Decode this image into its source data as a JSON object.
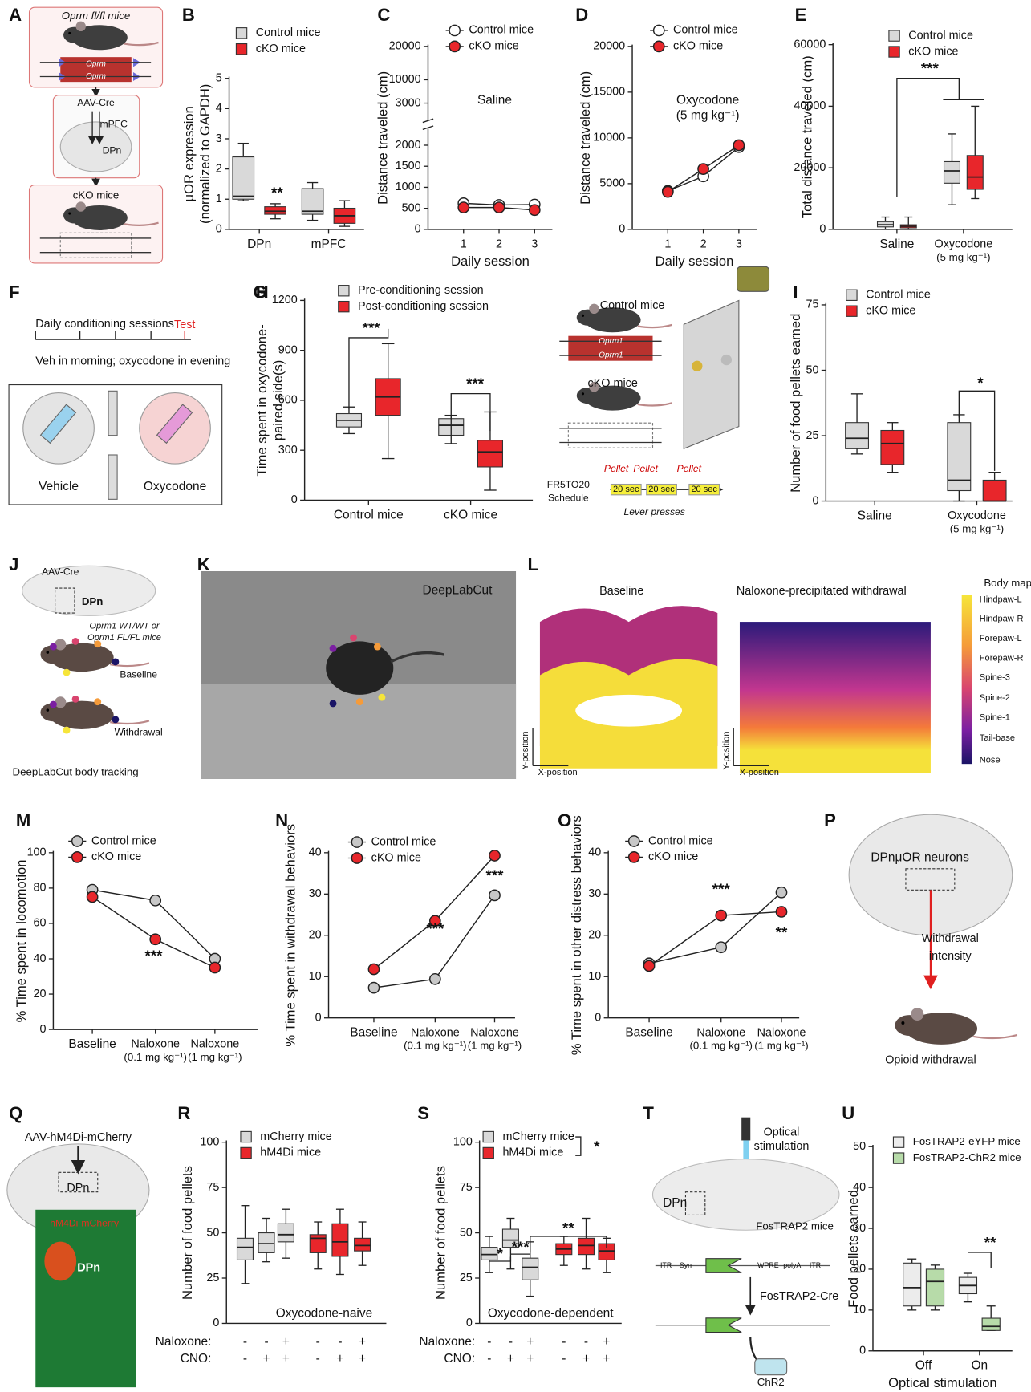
{
  "chart_data": [
    {
      "panel": "B",
      "type": "box",
      "ylabel": [
        "μOR expression",
        "(normalized to GAPDH)"
      ],
      "categories": [
        "DPn",
        "mPFC"
      ],
      "ylim": [
        0,
        5
      ],
      "yticks": [
        0,
        1,
        2,
        3,
        4,
        5
      ],
      "grid": false,
      "series": [
        {
          "name": "Control mice",
          "color": "#d9d9d9",
          "min": [
            0.95,
            0.3
          ],
          "q1": [
            1.0,
            0.5
          ],
          "median": [
            1.1,
            0.6
          ],
          "q3": [
            2.4,
            1.35
          ],
          "max": [
            2.85,
            1.55
          ]
        },
        {
          "name": "cKO mice",
          "color": "#e8262b",
          "min": [
            0.35,
            0.1
          ],
          "q1": [
            0.5,
            0.2
          ],
          "median": [
            0.6,
            0.45
          ],
          "q3": [
            0.75,
            0.7
          ],
          "max": [
            0.85,
            0.95
          ]
        }
      ],
      "annotations": [
        "**"
      ]
    },
    {
      "panel": "C",
      "type": "line",
      "ylabel": [
        "Distance traveled (cm)"
      ],
      "xlabel": "Daily session",
      "x": [
        1,
        2,
        3
      ],
      "xlim": [
        0,
        3.5
      ],
      "xticks": [
        1,
        2,
        3
      ],
      "ylim": [
        0,
        20000
      ],
      "ybreak": [
        2000,
        3000
      ],
      "yticks": [
        0,
        500,
        1000,
        1500,
        2000,
        3000,
        10000,
        20000
      ],
      "grid": false,
      "series": [
        {
          "name": "Control mice",
          "color": "#ffffff",
          "values": [
            620,
            580,
            590
          ]
        },
        {
          "name": "cKO mice",
          "color": "#e8262b",
          "values": [
            520,
            520,
            460
          ]
        }
      ],
      "annotations": [
        "Saline"
      ]
    },
    {
      "panel": "D",
      "type": "line",
      "ylabel": [
        "Distance traveled (cm)"
      ],
      "xlabel": "Daily session",
      "x": [
        1,
        2,
        3
      ],
      "xlim": [
        0,
        3.5
      ],
      "xticks": [
        1,
        2,
        3
      ],
      "ylim": [
        0,
        20000
      ],
      "yticks": [
        0,
        5000,
        10000,
        15000,
        20000
      ],
      "grid": false,
      "series": [
        {
          "name": "Control mice",
          "color": "#ffffff",
          "values": [
            4200,
            5800,
            9000
          ]
        },
        {
          "name": "cKO mice",
          "color": "#e8262b",
          "values": [
            4100,
            6600,
            9200
          ]
        }
      ],
      "annotations": [
        "Oxycodone",
        "(5 mg kg⁻¹)"
      ]
    },
    {
      "panel": "E",
      "type": "box",
      "ylabel": [
        "Total distance traveled (cm)"
      ],
      "categories": [
        "Saline",
        [
          "Oxycodone",
          "(5 mg kg⁻¹)"
        ]
      ],
      "ylim": [
        0,
        60000
      ],
      "yticks": [
        0,
        20000,
        40000,
        60000
      ],
      "grid": false,
      "series": [
        {
          "name": "Control mice",
          "color": "#d9d9d9",
          "min": [
            0,
            8000
          ],
          "q1": [
            800,
            15000
          ],
          "median": [
            1500,
            19000
          ],
          "q3": [
            2500,
            22000
          ],
          "max": [
            4000,
            31000
          ]
        },
        {
          "name": "cKO mice",
          "color": "#e8262b",
          "min": [
            0,
            10000
          ],
          "q1": [
            500,
            13000
          ],
          "median": [
            1000,
            17000
          ],
          "q3": [
            1500,
            24000
          ],
          "max": [
            4000,
            40000
          ]
        }
      ],
      "annotations": [
        "***"
      ]
    },
    {
      "panel": "G",
      "type": "box",
      "ylabel": [
        "Time spent in oxycodone-",
        "paired side(s)"
      ],
      "categories": [
        "Control mice",
        "cKO mice"
      ],
      "ylim": [
        0,
        1200
      ],
      "yticks": [
        0,
        300,
        600,
        900,
        1200
      ],
      "grid": false,
      "series": [
        {
          "name": "Pre-conditioning session",
          "color": "#d9d9d9",
          "min": [
            400,
            340
          ],
          "q1": [
            440,
            390
          ],
          "median": [
            480,
            450
          ],
          "q3": [
            520,
            490
          ],
          "max": [
            560,
            510
          ]
        },
        {
          "name": "Post-conditioning session",
          "color": "#e8262b",
          "min": [
            250,
            60
          ],
          "q1": [
            510,
            200
          ],
          "median": [
            620,
            290
          ],
          "q3": [
            730,
            360
          ],
          "max": [
            940,
            530
          ]
        }
      ],
      "annotations": [
        "***",
        "***"
      ]
    },
    {
      "panel": "I",
      "type": "box",
      "ylabel": [
        "Number of food pellets earned"
      ],
      "categories": [
        "Saline",
        [
          "Oxycodone",
          "(5 mg kg⁻¹)"
        ]
      ],
      "ylim": [
        0,
        75
      ],
      "yticks": [
        0,
        25,
        50,
        75
      ],
      "grid": false,
      "series": [
        {
          "name": "Control mice",
          "color": "#d9d9d9",
          "min": [
            18,
            0
          ],
          "q1": [
            20,
            4
          ],
          "median": [
            24,
            8
          ],
          "q3": [
            30,
            30
          ],
          "max": [
            41,
            33
          ]
        },
        {
          "name": "cKO mice",
          "color": "#e8262b",
          "min": [
            11,
            0
          ],
          "q1": [
            14,
            0
          ],
          "median": [
            22,
            0
          ],
          "q3": [
            27,
            8
          ],
          "max": [
            30,
            11
          ]
        }
      ],
      "annotations": [
        "*"
      ]
    },
    {
      "panel": "M",
      "type": "line",
      "ylabel": [
        "% Time spent in locomotion"
      ],
      "categories": [
        "Baseline",
        [
          "Naloxone",
          "(0.1 mg kg⁻¹)"
        ],
        [
          "Naloxone",
          "(1 mg kg⁻¹)"
        ]
      ],
      "ylim": [
        0,
        100
      ],
      "yticks": [
        0,
        20,
        40,
        60,
        80,
        100
      ],
      "grid": false,
      "series": [
        {
          "name": "Control mice",
          "color": "#c8c8c8",
          "values": [
            79,
            73,
            40
          ]
        },
        {
          "name": "cKO mice",
          "color": "#e8262b",
          "values": [
            75,
            51,
            35
          ]
        }
      ],
      "annotations": [
        "***"
      ]
    },
    {
      "panel": "N",
      "type": "line",
      "ylabel": [
        "% Time spent in withdrawal behaviors"
      ],
      "categories": [
        "Baseline",
        [
          "Naloxone",
          "(0.1 mg kg⁻¹)"
        ],
        [
          "Naloxone",
          "(1 mg kg⁻¹)"
        ]
      ],
      "ylim": [
        0,
        40
      ],
      "yticks": [
        0,
        10,
        20,
        30,
        40
      ],
      "grid": false,
      "series": [
        {
          "name": "Control mice",
          "color": "#c8c8c8",
          "values": [
            7.3,
            9.4,
            29.7
          ]
        },
        {
          "name": "cKO mice",
          "color": "#e8262b",
          "values": [
            11.8,
            23.5,
            39.3
          ]
        }
      ],
      "annotations": [
        "***",
        "***"
      ]
    },
    {
      "panel": "O",
      "type": "line",
      "ylabel": [
        "% Time spent in other distress behaviors"
      ],
      "categories": [
        "Baseline",
        [
          "Naloxone",
          "(0.1 mg kg⁻¹)"
        ],
        [
          "Naloxone",
          "(1 mg kg⁻¹)"
        ]
      ],
      "ylim": [
        0,
        40
      ],
      "yticks": [
        0,
        10,
        20,
        30,
        40
      ],
      "grid": false,
      "series": [
        {
          "name": "Control mice",
          "color": "#c8c8c8",
          "values": [
            13.2,
            17.1,
            30.4
          ]
        },
        {
          "name": "cKO mice",
          "color": "#e8262b",
          "values": [
            12.6,
            24.8,
            25.7
          ]
        }
      ],
      "annotations": [
        "***",
        "**"
      ]
    },
    {
      "panel": "R",
      "type": "box",
      "ylabel": [
        "Number of food pellets"
      ],
      "categories": [
        null,
        null,
        null,
        null,
        null,
        null
      ],
      "ylim": [
        0,
        100
      ],
      "yticks": [
        0,
        25,
        50,
        75,
        100
      ],
      "grid": false,
      "series": [
        {
          "name": "mCherry mice",
          "color": "#d9d9d9",
          "min": [
            22,
            34,
            36,
            null,
            null,
            null
          ],
          "q1": [
            35,
            39,
            45,
            null,
            null,
            null
          ],
          "median": [
            42,
            44,
            49,
            null,
            null,
            null
          ],
          "q3": [
            47,
            50,
            55,
            null,
            null,
            null
          ],
          "max": [
            65,
            58,
            63,
            null,
            null,
            null
          ]
        },
        {
          "name": "hM4Di mice",
          "color": "#e8262b",
          "min": [
            null,
            null,
            null,
            30,
            27,
            32
          ],
          "q1": [
            null,
            null,
            null,
            39,
            37,
            40
          ],
          "median": [
            null,
            null,
            null,
            47,
            45,
            43
          ],
          "q3": [
            null,
            null,
            null,
            49,
            55,
            47
          ],
          "max": [
            null,
            null,
            null,
            56,
            63,
            56
          ]
        }
      ],
      "rows": [
        {
          "name": "Naloxone:",
          "values": [
            "-",
            "-",
            "+",
            "-",
            "-",
            "+"
          ]
        },
        {
          "name": "CNO:",
          "values": [
            "-",
            "+",
            "+",
            "-",
            "+",
            "+"
          ]
        }
      ],
      "annotations": [
        "Oxycodone-naive"
      ]
    },
    {
      "panel": "S",
      "type": "box",
      "ylabel": [
        "Number of food pellets"
      ],
      "categories": [
        null,
        null,
        null,
        null,
        null,
        null
      ],
      "ylim": [
        0,
        100
      ],
      "yticks": [
        0,
        25,
        50,
        75,
        100
      ],
      "grid": false,
      "series": [
        {
          "name": "mCherry mice",
          "color": "#d9d9d9",
          "min": [
            28,
            30,
            15,
            null,
            null,
            null
          ],
          "q1": [
            35,
            42,
            24,
            null,
            null,
            null
          ],
          "median": [
            38,
            46,
            31,
            null,
            null,
            null
          ],
          "q3": [
            42,
            52,
            36,
            null,
            null,
            null
          ],
          "max": [
            48,
            58,
            45,
            null,
            null,
            null
          ]
        },
        {
          "name": "hM4Di mice",
          "color": "#e8262b",
          "min": [
            null,
            null,
            null,
            32,
            30,
            28
          ],
          "q1": [
            null,
            null,
            null,
            38,
            38,
            35
          ],
          "median": [
            null,
            null,
            null,
            41,
            43,
            40
          ],
          "q3": [
            null,
            null,
            null,
            44,
            47,
            44
          ],
          "max": [
            null,
            null,
            null,
            48,
            58,
            47
          ]
        }
      ],
      "rows": [
        {
          "name": "Naloxone:",
          "values": [
            "-",
            "-",
            "+",
            "-",
            "-",
            "+"
          ]
        },
        {
          "name": "CNO:",
          "values": [
            "-",
            "+",
            "+",
            "-",
            "+",
            "+"
          ]
        }
      ],
      "annotations": [
        "Oxycodone-dependent",
        "*",
        "***",
        "**",
        "*"
      ]
    },
    {
      "panel": "U",
      "type": "box",
      "ylabel": [
        "Food pellets earned"
      ],
      "xlabel": "Optical stimulation",
      "categories": [
        "Off",
        "On"
      ],
      "ylim": [
        0,
        50
      ],
      "yticks": [
        0,
        10,
        20,
        30,
        40,
        50
      ],
      "grid": false,
      "series": [
        {
          "name": "FosTRAP2-eYFP mice",
          "color": "#ececec",
          "min": [
            10,
            12
          ],
          "q1": [
            11,
            14
          ],
          "median": [
            15.5,
            16
          ],
          "q3": [
            21.5,
            18
          ],
          "max": [
            22.5,
            19
          ]
        },
        {
          "name": "FosTRAP2-ChR2 mice",
          "color": "#b7dba9",
          "min": [
            10,
            5
          ],
          "q1": [
            11,
            5
          ],
          "median": [
            17,
            6
          ],
          "q3": [
            20,
            8
          ],
          "max": [
            21,
            11
          ]
        }
      ],
      "annotations": [
        "**"
      ]
    }
  ],
  "diagrams": [
    {
      "panel": "A",
      "texts": [
        "Oprm fl/fl mice",
        "Oprm",
        "Oprm",
        "AAV-Cre",
        "mPFC",
        "DPn",
        "cKO mice"
      ]
    },
    {
      "panel": "F",
      "texts": [
        "Daily conditioning sessions",
        "Test",
        "Veh in morning; oxycodone in evening",
        "Vehicle",
        "Oxycodone"
      ]
    },
    {
      "panel": "H",
      "texts": [
        "Control mice",
        "Oprm1",
        "Oprm1",
        "cKO mice",
        "Pellet",
        "Pellet",
        "Pellet",
        "FR5TO20",
        "Schedule",
        "20 sec",
        "20 sec",
        "20 sec",
        "Lever presses"
      ]
    },
    {
      "panel": "J",
      "texts": [
        "AAV-Cre",
        "DPn",
        "Oprm1 WT/WT or",
        "Oprm1 FL/FL mice",
        "Baseline",
        "Withdrawal",
        "DeepLabCut body tracking"
      ]
    },
    {
      "panel": "K",
      "texts": [
        "DeepLabCut"
      ]
    },
    {
      "panel": "L",
      "texts": [
        "Baseline",
        "Naloxone-precipitated withdrawal",
        "Body map:",
        "Hindpaw-L",
        "Hindpaw-R",
        "Forepaw-L",
        "Forepaw-R",
        "Spine-3",
        "Spine-2",
        "Spine-1",
        "Tail-base",
        "Nose",
        "Y-position",
        "X-position",
        "Y-position",
        "X-position"
      ]
    },
    {
      "panel": "P",
      "texts": [
        "DPnμOR neurons",
        "Withdrawal",
        "intensity",
        "Opioid withdrawal"
      ]
    },
    {
      "panel": "Q",
      "texts": [
        "AAV-hM4Di-mCherry",
        "DPn",
        "hM4Di-mCherry",
        "DPn"
      ]
    },
    {
      "panel": "T",
      "texts": [
        "Optical",
        "stimulation",
        "DPn",
        "FosTRAP2 mice",
        "ITR",
        "Syn",
        "WPRE",
        "polyA",
        "ITR",
        "FosTRAP2-Cre",
        "ChR2"
      ]
    }
  ]
}
